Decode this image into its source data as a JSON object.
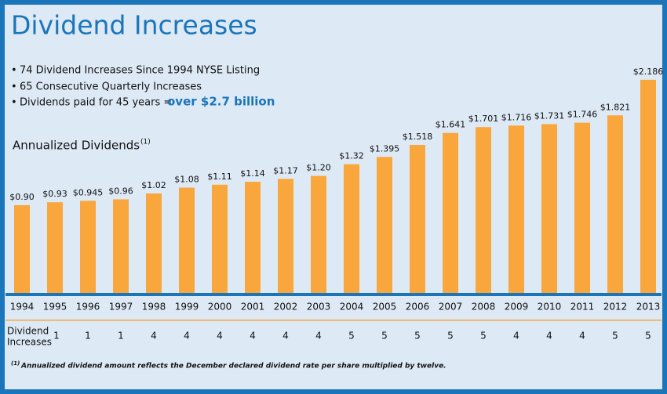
{
  "title": "Dividend Increases",
  "bullets": [
    "74 Dividend Increases Since 1994 NYSE Listing",
    "65 Consecutive Quarterly Increases",
    "Dividends paid for 45 years ="
  ],
  "bullet_highlight": "over $2.7 billion",
  "chart_data": {
    "type": "bar",
    "title": "Annualized Dividends",
    "title_note": "(1)",
    "categories": [
      "1994",
      "1995",
      "1996",
      "1997",
      "1998",
      "1999",
      "2000",
      "2001",
      "2002",
      "2003",
      "2004",
      "2005",
      "2006",
      "2007",
      "2008",
      "2009",
      "2010",
      "2011",
      "2012",
      "2013"
    ],
    "values": [
      0.9,
      0.93,
      0.945,
      0.96,
      1.02,
      1.08,
      1.11,
      1.14,
      1.17,
      1.2,
      1.32,
      1.395,
      1.518,
      1.641,
      1.701,
      1.716,
      1.731,
      1.746,
      1.821,
      2.186
    ],
    "value_labels": [
      "$0.90",
      "$0.93",
      "$0.945",
      "$0.96",
      "$1.02",
      "$1.08",
      "$1.11",
      "$1.14",
      "$1.17",
      "$1.20",
      "$1.32",
      "$1.395",
      "$1.518",
      "$1.641",
      "$1.701",
      "$1.716",
      "$1.731",
      "$1.746",
      "$1.821",
      "$2.186"
    ],
    "color": "#f9a63c",
    "increases_label": [
      "Dividend",
      "Increases"
    ],
    "increases": [
      null,
      1,
      1,
      1,
      4,
      4,
      4,
      4,
      4,
      4,
      5,
      5,
      5,
      5,
      5,
      4,
      4,
      4,
      5,
      5
    ]
  },
  "footnote": {
    "marker": "(1)",
    "text": "Annualized dividend amount reflects the December declared dividend rate per share multiplied by twelve."
  }
}
